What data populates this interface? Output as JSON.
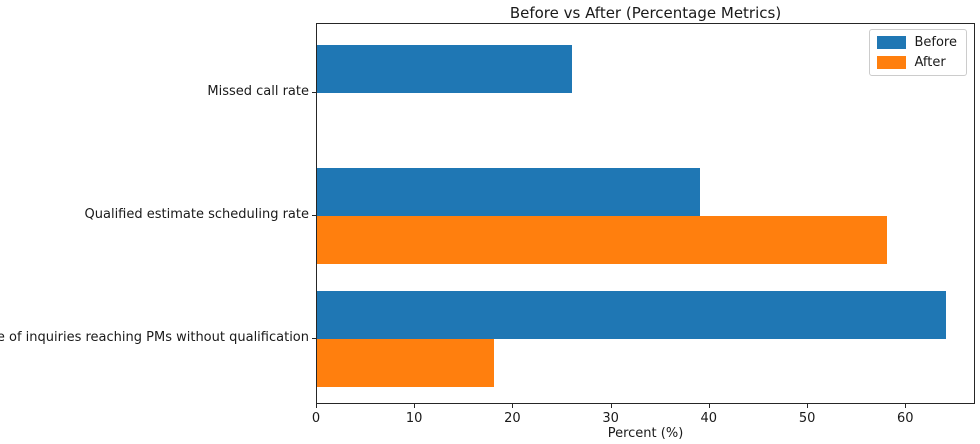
{
  "chart_data": {
    "type": "bar",
    "orientation": "horizontal",
    "title": "Before vs After (Percentage Metrics)",
    "xlabel": "Percent (%)",
    "ylabel": "",
    "categories": [
      "Missed call rate",
      "Qualified estimate scheduling rate",
      "Share of inquiries reaching PMs without qualification"
    ],
    "series": [
      {
        "name": "Before",
        "color": "#1f77b4",
        "values": [
          26,
          39,
          64
        ]
      },
      {
        "name": "After",
        "color": "#ff7f0e",
        "values": [
          0,
          58,
          18
        ]
      }
    ],
    "xticks": [
      0,
      10,
      20,
      30,
      40,
      50,
      60
    ],
    "xlim": [
      0,
      67.1
    ],
    "legend_position": "upper right",
    "grid": false,
    "colors": {
      "before": "#1f77b4",
      "after": "#ff7f0e",
      "spine": "#262626",
      "text": "#1a1a1a",
      "legend_border": "#cccccc"
    }
  }
}
